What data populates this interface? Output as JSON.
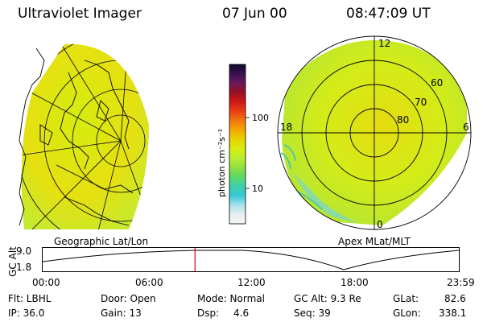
{
  "header": {
    "title": "Ultraviolet Imager",
    "date": "07 Jun 00",
    "time": "08:47:09 UT"
  },
  "colorbar": {
    "unit_label": "photon cm⁻²s⁻¹",
    "ticks": [
      "100",
      "10"
    ],
    "colors": [
      "#0b0b2e",
      "#3a1050",
      "#6a1a5a",
      "#9a1020",
      "#d01818",
      "#e84010",
      "#f07810",
      "#f5a800",
      "#e6d400",
      "#d6ec10",
      "#b8ee30",
      "#90e040",
      "#5cd868",
      "#40d0a8",
      "#38c8d8",
      "#a8e0ec",
      "#e8eef2",
      "#f6f6f6"
    ]
  },
  "left_map": {
    "caption": "Geographic Lat/Lon"
  },
  "polar_map": {
    "caption": "Apex MLat/MLT",
    "mlt_labels": {
      "top": "12",
      "left": "18",
      "right": "6",
      "bottom": "0"
    },
    "lat_labels": [
      "60",
      "70",
      "80"
    ]
  },
  "timeline": {
    "y_axis_label": "GC Alt",
    "y_ticks": [
      "9.0",
      "1.8"
    ],
    "x_ticks": [
      "00:00",
      "06:00",
      "12:00",
      "18:00",
      "23:59"
    ],
    "current_time_fraction": 0.366
  },
  "info": {
    "filter_label": "Flt: LBHL",
    "ip_label": "IP: 36.0",
    "door_label": "Door: Open",
    "gain_label": "Gain: 13",
    "mode_label": "Mode: Normal",
    "dsp_label": "Dsp:",
    "dsp_value": "4.6",
    "gcalt_label": "GC Alt: 9.3 Re",
    "seq_label": "Seq: 39",
    "glat_label": "GLat:",
    "glat_value": "82.6",
    "glon_label": "GLon:",
    "glon_value": "338.1"
  }
}
